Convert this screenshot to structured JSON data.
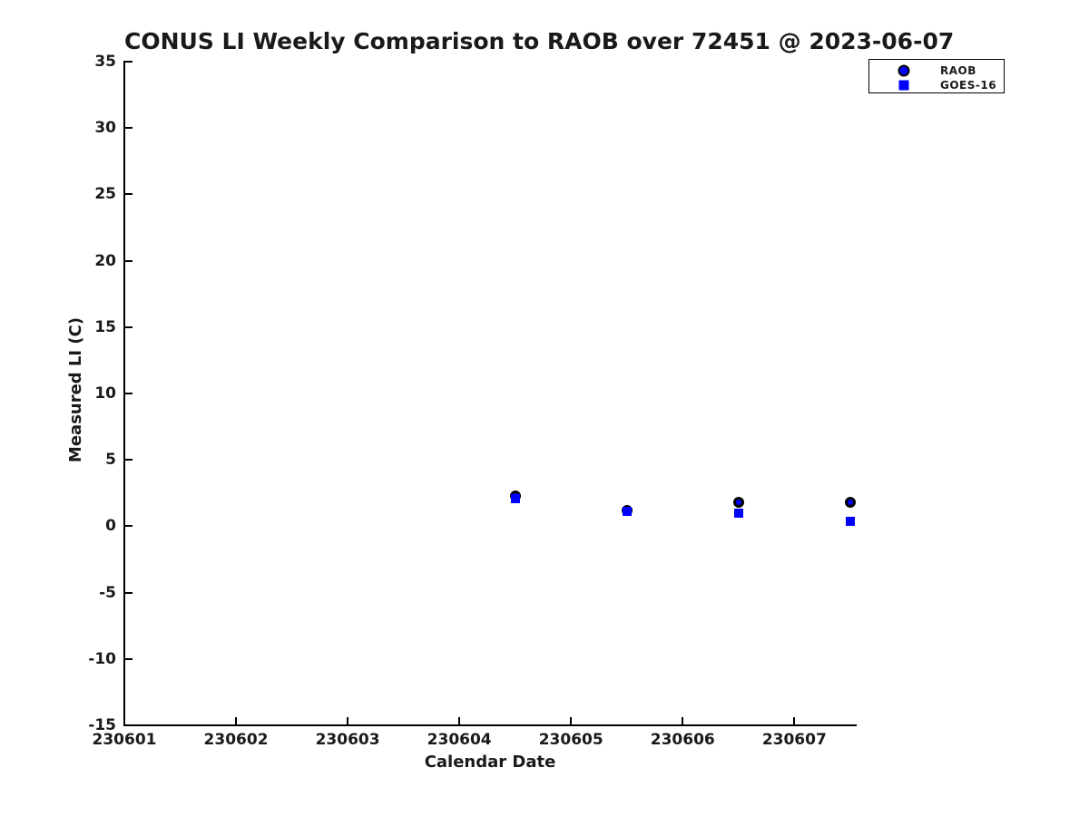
{
  "figure": {
    "background": "#ffffff",
    "text_color": "#1a1a1a",
    "axis_color": "#000000"
  },
  "chart_data": {
    "type": "scatter",
    "title": "CONUS LI Weekly Comparison to RAOB over 72451 @ 2023-06-07",
    "xlabel": "Calendar Date",
    "ylabel": "Measured LI (C)",
    "xlim": [
      230601,
      230607.55
    ],
    "ylim": [
      -15,
      35
    ],
    "x_ticks": [
      230601,
      230602,
      230603,
      230604,
      230605,
      230606,
      230607
    ],
    "y_ticks": [
      35,
      30,
      25,
      20,
      15,
      10,
      5,
      0,
      -5,
      -10,
      -15
    ],
    "grid": false,
    "tick_direction": "in",
    "legend_position": "top-right",
    "series": [
      {
        "name": "RAOB",
        "marker": "circle",
        "face_color": "#0000FF",
        "edge_color": "#000000",
        "x": [
          230604.5,
          230605.5,
          230606.5,
          230607.5
        ],
        "y": [
          2.3,
          1.2,
          1.8,
          1.8
        ]
      },
      {
        "name": "GOES-16",
        "marker": "square",
        "face_color": "#0000FF",
        "edge_color": "#0000FF",
        "x": [
          230604.5,
          230605.5,
          230606.5,
          230607.5
        ],
        "y": [
          2.1,
          1.1,
          1.0,
          0.4
        ]
      }
    ]
  }
}
